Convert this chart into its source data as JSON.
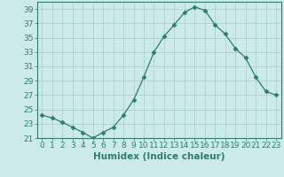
{
  "x": [
    0,
    1,
    2,
    3,
    4,
    5,
    6,
    7,
    8,
    9,
    10,
    11,
    12,
    13,
    14,
    15,
    16,
    17,
    18,
    19,
    20,
    21,
    22,
    23
  ],
  "y": [
    24.2,
    23.8,
    23.2,
    22.5,
    21.8,
    21.0,
    21.8,
    22.5,
    24.2,
    26.3,
    29.5,
    33.0,
    35.2,
    36.8,
    38.5,
    39.3,
    38.8,
    36.8,
    35.5,
    33.5,
    32.2,
    29.5,
    27.5,
    27.0
  ],
  "title": "",
  "xlabel": "Humidex (Indice chaleur)",
  "ylabel": "",
  "ylim": [
    21,
    40
  ],
  "xlim": [
    -0.5,
    23.5
  ],
  "yticks": [
    21,
    23,
    25,
    27,
    29,
    31,
    33,
    35,
    37,
    39
  ],
  "xticks": [
    0,
    1,
    2,
    3,
    4,
    5,
    6,
    7,
    8,
    9,
    10,
    11,
    12,
    13,
    14,
    15,
    16,
    17,
    18,
    19,
    20,
    21,
    22,
    23
  ],
  "line_color": "#2e7d6e",
  "marker": "D",
  "marker_size": 2.5,
  "bg_color": "#cceaea",
  "grid_color": "#aacccc",
  "tick_label_fontsize": 6.5,
  "xlabel_fontsize": 7.5
}
